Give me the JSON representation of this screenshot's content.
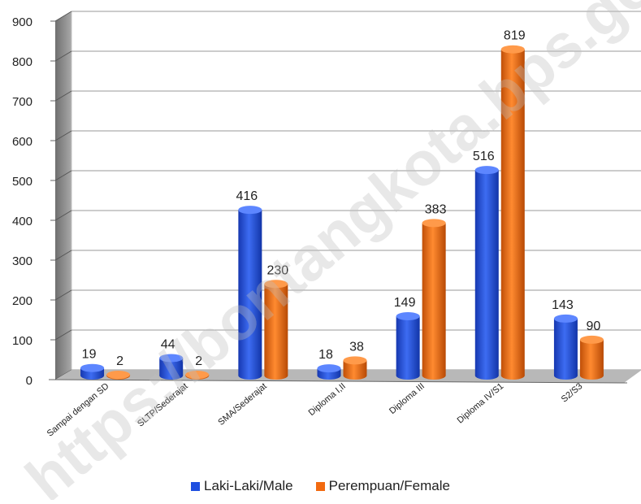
{
  "chart_data": {
    "type": "bar",
    "categories": [
      "Sampai dengan SD",
      "SLTP/Sederajat",
      "SMA/Sederajat",
      "Diploma I,II",
      "Diploma III",
      "Diploma IV/S1",
      "S2/S3"
    ],
    "series": [
      {
        "name": "Laki-Laki/Male",
        "values": [
          19,
          44,
          416,
          18,
          149,
          516,
          143
        ],
        "color": "#1f4fe0"
      },
      {
        "name": "Perempuan/Female",
        "values": [
          2,
          2,
          230,
          38,
          383,
          819,
          90
        ],
        "color": "#f26a10"
      }
    ],
    "ylim": [
      0,
      900
    ],
    "yticks": [
      0,
      100,
      200,
      300,
      400,
      500,
      600,
      700,
      800,
      900
    ],
    "grid": true,
    "legend_position": "bottom",
    "style": "3d-cylinder"
  },
  "watermark": "https://bontangkota.bps.go.id"
}
